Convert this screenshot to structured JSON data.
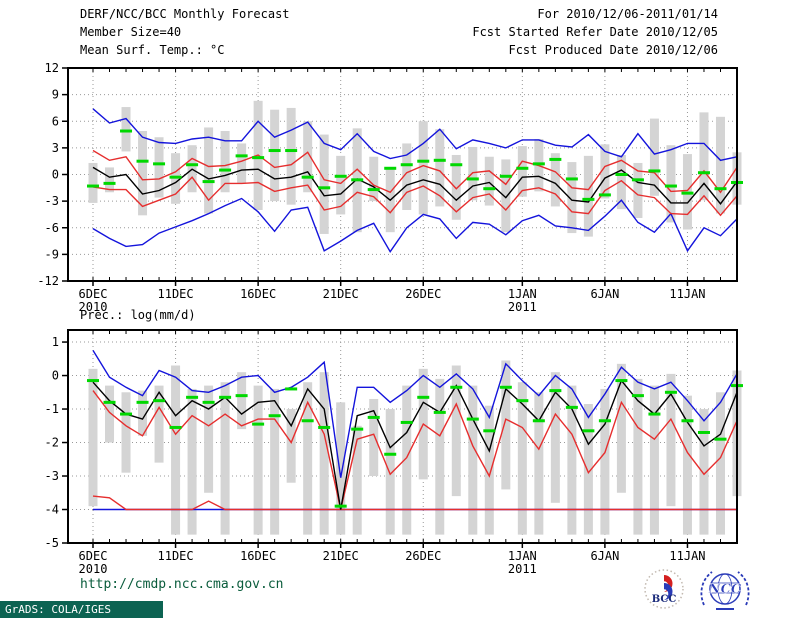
{
  "header": {
    "title": "DERF/NCC/BCC Monthly Forecast",
    "member_size": "Member Size=40",
    "valid_range": "For 2010/12/06-2011/01/14",
    "refer_date": "Fcst Started Refer Date 2010/12/05",
    "produced_date": "Fcst Produced Date 2010/12/06"
  },
  "footer": {
    "url": "http://cmdp.ncc.cma.gov.cn",
    "grads_credit": "GrADS: COLA/IGES",
    "logos": [
      "bcc-logo",
      "ncc-logo"
    ]
  },
  "colors": {
    "max_min_line": "#1414dc",
    "std_line": "#e62e2e",
    "mean_line": "#000000",
    "obs_dash": "#00d800",
    "spread_bar": "#d4d4d4",
    "grid": "#999999",
    "stamp_bg": "#0c6352",
    "url_text": "#0a5c3c",
    "logo_blue": "#2a3bb8",
    "logo_red": "#d42020",
    "logo_navy": "#1a2a7a"
  },
  "chart_data": [
    {
      "id": "temp",
      "type": "line",
      "title": "Mean Surf. Temp.: °C",
      "ylim": [
        -12,
        12
      ],
      "yticks": [
        12,
        9,
        6,
        3,
        0,
        -3,
        -6,
        -9,
        -12
      ],
      "x_days": 40,
      "grid": "dotted",
      "legend": "none",
      "xticks": [
        {
          "day": 1,
          "label": "6DEC",
          "sub": "2010"
        },
        {
          "day": 6,
          "label": "11DEC"
        },
        {
          "day": 11,
          "label": "16DEC"
        },
        {
          "day": 16,
          "label": "21DEC"
        },
        {
          "day": 21,
          "label": "26DEC"
        },
        {
          "day": 27,
          "label": "1JAN",
          "sub": "2011"
        },
        {
          "day": 32,
          "label": "6JAN"
        },
        {
          "day": 37,
          "label": "11JAN"
        }
      ],
      "series": [
        {
          "name": "ensemble-spread-bar",
          "type": "bar",
          "color": "#d4d4d4",
          "top": [
            1.3,
            0.8,
            7.6,
            4.9,
            4.2,
            2.4,
            3.3,
            5.3,
            4.9,
            3.5,
            8.3,
            7.3,
            7.5,
            6.0,
            4.5,
            2.1,
            5.2,
            2.0,
            0.8,
            3.5,
            6.0,
            5.1,
            2.2,
            3.1,
            2.0,
            1.7,
            3.2,
            4.0,
            2.4,
            1.4,
            2.1,
            3.4,
            2.2,
            1.3,
            6.3,
            3.3,
            2.3,
            7.0,
            6.5,
            2.5
          ],
          "bottom": [
            -3.2,
            -2.0,
            2.6,
            -4.6,
            -2.6,
            -3.3,
            -2.0,
            -4.4,
            -2.0,
            -1.0,
            -4.0,
            -3.0,
            -3.4,
            -2.0,
            -6.7,
            -4.5,
            -6.5,
            -3.0,
            -6.5,
            -4.0,
            -4.5,
            -3.6,
            -5.1,
            -2.9,
            -3.5,
            -6.5,
            -2.5,
            -1.9,
            -3.6,
            -6.6,
            -7.0,
            -2.7,
            -3.9,
            -4.9,
            -2.4,
            -5.4,
            -6.2,
            -2.9,
            -4.4,
            -3.4
          ]
        },
        {
          "name": "ensemble-max",
          "type": "line",
          "color": "#1414dc",
          "values": [
            7.4,
            5.8,
            6.3,
            4.2,
            3.6,
            3.5,
            4.0,
            4.2,
            3.8,
            3.8,
            6.0,
            4.2,
            5.0,
            5.9,
            3.5,
            2.8,
            4.6,
            2.6,
            1.8,
            2.2,
            3.5,
            5.1,
            2.9,
            3.9,
            3.5,
            3.0,
            3.9,
            3.9,
            3.3,
            3.1,
            4.5,
            2.6,
            2.0,
            4.6,
            2.3,
            2.8,
            3.5,
            3.5,
            1.6,
            2.0
          ]
        },
        {
          "name": "ensemble-min",
          "type": "line",
          "color": "#1414dc",
          "values": [
            -6.1,
            -7.2,
            -8.1,
            -7.9,
            -6.6,
            -5.9,
            -5.2,
            -4.4,
            -3.5,
            -2.7,
            -4.2,
            -6.4,
            -4.0,
            -3.7,
            -8.6,
            -7.5,
            -6.3,
            -5.5,
            -8.7,
            -6.0,
            -4.5,
            -5.0,
            -7.2,
            -5.4,
            -5.6,
            -6.8,
            -5.2,
            -4.6,
            -5.8,
            -6.0,
            -6.3,
            -4.7,
            -2.9,
            -5.4,
            -6.5,
            -4.4,
            -8.6,
            -6.0,
            -6.9,
            -5.0
          ]
        },
        {
          "name": "mean-plus-std",
          "type": "line",
          "color": "#e62e2e",
          "values": [
            2.7,
            1.6,
            2.0,
            -0.6,
            -0.5,
            0.3,
            1.8,
            0.9,
            1.0,
            1.5,
            2.2,
            0.8,
            1.1,
            2.5,
            -0.6,
            -1.0,
            0.6,
            -1.2,
            -2.0,
            0.2,
            1.0,
            0.4,
            -1.6,
            0.2,
            0.4,
            -1.1,
            1.5,
            1.0,
            0.3,
            -1.5,
            -1.7,
            0.9,
            1.6,
            0.4,
            0.2,
            -1.9,
            -1.8,
            0.4,
            -2.0,
            0.8
          ]
        },
        {
          "name": "mean-minus-std",
          "type": "line",
          "color": "#e62e2e",
          "values": [
            -1.4,
            -1.7,
            -1.7,
            -3.6,
            -2.9,
            -2.2,
            -0.3,
            -2.9,
            -1.0,
            -1.0,
            -0.9,
            -1.9,
            -1.5,
            -1.2,
            -4.0,
            -3.6,
            -2.0,
            -2.5,
            -4.3,
            -2.0,
            -1.3,
            -2.4,
            -4.2,
            -2.6,
            -2.2,
            -4.0,
            -1.8,
            -1.5,
            -2.2,
            -4.2,
            -4.4,
            -1.8,
            -0.7,
            -2.3,
            -2.6,
            -4.4,
            -4.5,
            -2.4,
            -4.6,
            -2.4
          ]
        },
        {
          "name": "ensemble-mean",
          "type": "line",
          "color": "#000000",
          "values": [
            0.8,
            -0.3,
            0.0,
            -2.2,
            -1.8,
            -0.9,
            0.6,
            -0.5,
            -0.1,
            0.5,
            0.6,
            -0.5,
            -0.3,
            0.3,
            -2.4,
            -2.2,
            -0.5,
            -1.4,
            -2.9,
            -1.2,
            -0.6,
            -1.1,
            -2.9,
            -1.3,
            -0.9,
            -2.6,
            -0.3,
            -0.2,
            -1.0,
            -2.9,
            -3.1,
            -0.4,
            0.5,
            -0.9,
            -1.2,
            -3.2,
            -3.2,
            -1.0,
            -3.3,
            -0.8
          ]
        },
        {
          "name": "obs-dash",
          "type": "dash",
          "color": "#00d800",
          "values": [
            -1.3,
            -1.0,
            4.9,
            1.5,
            1.2,
            -0.3,
            1.1,
            -0.8,
            0.5,
            2.1,
            1.9,
            2.7,
            2.7,
            -0.3,
            -1.5,
            -0.2,
            -0.6,
            -1.7,
            0.7,
            1.1,
            1.5,
            1.6,
            1.1,
            -0.5,
            -1.6,
            -0.2,
            0.7,
            1.2,
            1.7,
            -0.5,
            -2.8,
            -2.3,
            0.0,
            -0.6,
            0.4,
            -1.3,
            -2.1,
            0.2,
            -1.6,
            -0.9
          ]
        }
      ]
    },
    {
      "id": "prec",
      "type": "line",
      "title": "Prec.: log(mm/d)",
      "ylim": [
        -5,
        1.36
      ],
      "yticks": [
        1,
        0,
        -1,
        -2,
        -3,
        -4,
        -5
      ],
      "x_days": 40,
      "grid": "dotted",
      "legend": "none",
      "xticks": [
        {
          "day": 1,
          "label": "6DEC",
          "sub": "2010"
        },
        {
          "day": 6,
          "label": "11DEC"
        },
        {
          "day": 11,
          "label": "16DEC"
        },
        {
          "day": 16,
          "label": "21DEC"
        },
        {
          "day": 21,
          "label": "26DEC"
        },
        {
          "day": 27,
          "label": "1JAN",
          "sub": "2011"
        },
        {
          "day": 32,
          "label": "6JAN"
        },
        {
          "day": 37,
          "label": "11JAN"
        }
      ],
      "series": [
        {
          "name": "ensemble-spread-bar",
          "type": "bar",
          "color": "#d4d4d4",
          "top": [
            0.2,
            -0.3,
            -0.5,
            -0.45,
            -0.3,
            0.3,
            -0.4,
            -0.3,
            -0.2,
            0.1,
            -0.3,
            -0.4,
            -1.0,
            -0.2,
            0.1,
            -0.8,
            -1.5,
            -0.7,
            -1.0,
            -0.3,
            0.2,
            -0.1,
            0.3,
            -0.3,
            -0.9,
            0.45,
            -0.2,
            -0.5,
            0.1,
            -0.3,
            -0.85,
            -0.4,
            0.35,
            -0.1,
            -0.3,
            0.05,
            -0.6,
            -1.0,
            -0.5,
            0.15
          ],
          "bottom": [
            -3.9,
            -2.0,
            -2.9,
            -1.8,
            -2.6,
            -4.75,
            -4.75,
            -3.5,
            -4.75,
            -1.6,
            -4.75,
            -4.75,
            -3.2,
            -4.75,
            -4.75,
            -4.75,
            -4.75,
            -3.0,
            -4.75,
            -4.75,
            -3.1,
            -4.75,
            -3.6,
            -4.75,
            -4.75,
            -3.4,
            -4.75,
            -4.75,
            -3.8,
            -4.75,
            -4.75,
            -4.75,
            -3.5,
            -4.75,
            -4.75,
            -3.9,
            -4.75,
            -4.75,
            -4.75,
            -3.6
          ]
        },
        {
          "name": "ensemble-min-floor",
          "type": "line",
          "color": "#1414dc",
          "values": [
            -4,
            -4,
            -4,
            -4,
            -4,
            -4,
            -4,
            -4,
            -4,
            -4,
            -4,
            -4,
            -4,
            -4,
            -4,
            -4,
            -4,
            -4,
            -4,
            -4,
            -4,
            -4,
            -4,
            -4,
            -4,
            -4,
            -4,
            -4,
            -4,
            -4,
            -4,
            -4,
            -4,
            -4,
            -4,
            -4,
            -4,
            -4,
            -4,
            -4
          ]
        },
        {
          "name": "lower-floor-red",
          "type": "line",
          "color": "#e62e2e",
          "values": [
            -3.6,
            -3.65,
            -4,
            -4,
            -4,
            -4,
            -4,
            -3.75,
            -4,
            -4,
            -4,
            -4,
            -4,
            -4,
            -4,
            -4,
            -4,
            -4,
            -4,
            -4,
            -4,
            -4,
            -4,
            -4,
            -4,
            -4,
            -4,
            -4,
            -4,
            -4,
            -4,
            -4,
            -4,
            -4,
            -4,
            -4,
            -4,
            -4,
            -4,
            -4
          ]
        },
        {
          "name": "ensemble-max",
          "type": "line",
          "color": "#1414dc",
          "values": [
            0.75,
            -0.05,
            -0.35,
            -0.6,
            0.15,
            -0.05,
            -0.45,
            -0.5,
            -0.3,
            -0.05,
            0.0,
            -0.5,
            -0.35,
            -0.05,
            0.4,
            -3.05,
            -0.35,
            -0.35,
            -0.8,
            -0.45,
            0.0,
            -0.35,
            0.05,
            -0.4,
            -1.25,
            0.35,
            -0.15,
            -0.6,
            0.0,
            -0.4,
            -1.25,
            -0.55,
            0.25,
            -0.2,
            -0.4,
            -0.2,
            -0.75,
            -1.35,
            -0.8,
            0.05
          ]
        },
        {
          "name": "mean-minus-std",
          "type": "line",
          "color": "#e62e2e",
          "values": [
            -0.45,
            -1.1,
            -1.5,
            -1.8,
            -0.95,
            -1.75,
            -1.2,
            -1.5,
            -1.15,
            -1.5,
            -1.3,
            -1.3,
            -2.0,
            -0.8,
            -1.75,
            -4.0,
            -1.9,
            -1.75,
            -2.95,
            -2.45,
            -1.45,
            -1.8,
            -0.85,
            -2.1,
            -3.0,
            -1.3,
            -1.55,
            -2.2,
            -1.15,
            -1.75,
            -2.9,
            -2.3,
            -0.8,
            -1.55,
            -1.9,
            -1.3,
            -2.3,
            -2.95,
            -2.45,
            -1.35
          ]
        },
        {
          "name": "ensemble-mean",
          "type": "line",
          "color": "#000000",
          "values": [
            -0.2,
            -0.75,
            -1.15,
            -1.3,
            -0.5,
            -1.2,
            -0.75,
            -1.0,
            -0.65,
            -1.15,
            -0.8,
            -0.75,
            -1.5,
            -0.4,
            -1.0,
            -4.0,
            -1.2,
            -1.05,
            -2.15,
            -1.7,
            -0.8,
            -1.1,
            -0.3,
            -1.3,
            -2.25,
            -0.4,
            -0.85,
            -1.35,
            -0.5,
            -1.0,
            -2.05,
            -1.45,
            -0.15,
            -0.75,
            -1.15,
            -0.55,
            -1.4,
            -2.1,
            -1.75,
            -0.5
          ]
        },
        {
          "name": "obs-dash",
          "type": "dash",
          "color": "#00d800",
          "values": [
            -0.15,
            -0.8,
            -1.15,
            -0.8,
            -0.75,
            -1.55,
            -0.65,
            -0.8,
            -0.65,
            -0.6,
            -1.45,
            -1.2,
            -0.4,
            -1.35,
            -1.55,
            -3.9,
            -1.6,
            -1.25,
            -2.35,
            -1.4,
            -0.65,
            -1.1,
            -0.35,
            -1.3,
            -1.65,
            -0.35,
            -0.75,
            -1.35,
            -0.45,
            -0.95,
            -1.65,
            -1.35,
            -0.15,
            -0.6,
            -1.15,
            -0.5,
            -1.35,
            -1.7,
            -1.9,
            -0.3
          ]
        }
      ]
    }
  ]
}
